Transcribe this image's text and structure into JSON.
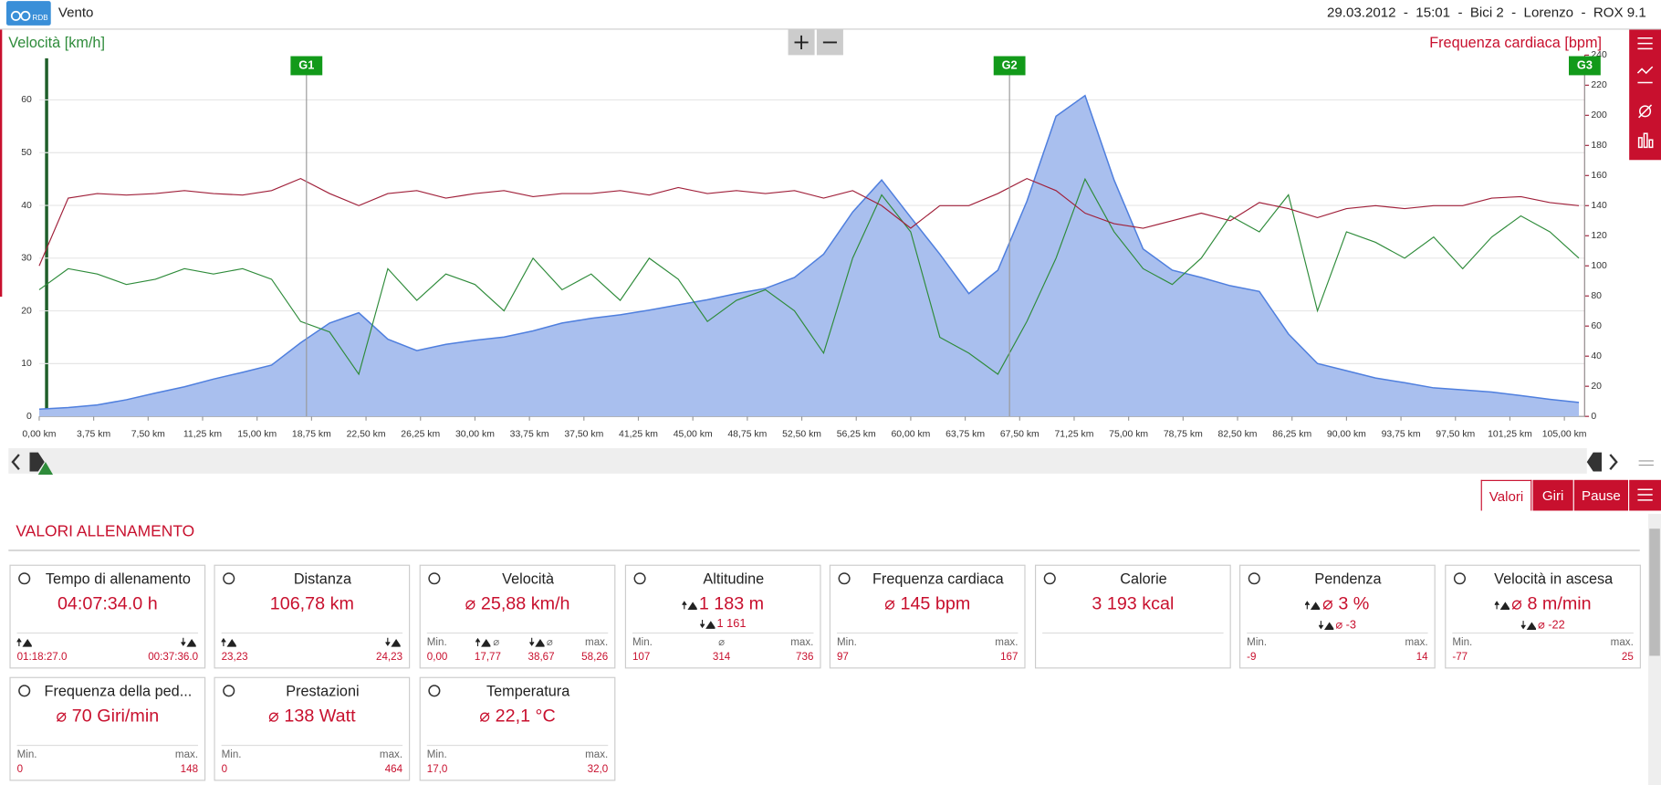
{
  "header": {
    "logo": "RDB",
    "app": "Vento",
    "info": "29.03.2012  -  15:01  -  Bici 2  -  Lorenzo  -  ROX 9.1"
  },
  "chart_data": {
    "type": "line",
    "ylabel": "Velocità [km/h]",
    "y2label": "Frequenza cardiaca [bpm]",
    "x": [
      0,
      2,
      4,
      6,
      8,
      10,
      12,
      14,
      16,
      18,
      20,
      22,
      24,
      26,
      28,
      30,
      32,
      34,
      36,
      38,
      40,
      42,
      44,
      46,
      48,
      50,
      52,
      54,
      56,
      58,
      60,
      62,
      64,
      66,
      68,
      70,
      72,
      74,
      76,
      78,
      80,
      82,
      84,
      86,
      88,
      90,
      92,
      94,
      96,
      98,
      100,
      102,
      104,
      106
    ],
    "series": [
      {
        "style": "area",
        "axis": "y3",
        "color": "#4f7fde",
        "fill": "#a9bfee",
        "values": [
          107,
          110,
          115,
          125,
          138,
          150,
          165,
          178,
          192,
          235,
          273,
          293,
          242,
          220,
          232,
          240,
          246,
          258,
          273,
          282,
          289,
          298,
          308,
          318,
          330,
          340,
          361,
          406,
          487,
          549,
          477,
          406,
          330,
          375,
          508,
          672,
          712,
          549,
          416,
          375,
          361,
          345,
          334,
          252,
          195,
          181,
          167,
          158,
          148,
          144,
          140,
          133,
          126,
          120
        ]
      },
      {
        "name": "Velocità [km/h]",
        "axis": "y",
        "color": "#2e8b3a",
        "values": [
          24,
          28,
          27,
          25,
          26,
          28,
          27,
          28,
          26,
          18,
          16,
          8,
          28,
          22,
          27,
          25,
          20,
          30,
          24,
          27,
          22,
          30,
          26,
          18,
          22,
          24,
          20,
          12,
          30,
          42,
          35,
          15,
          12,
          8,
          18,
          30,
          45,
          35,
          28,
          25,
          30,
          38,
          35,
          42,
          20,
          35,
          33,
          30,
          34,
          28,
          34,
          38,
          35,
          30
        ]
      },
      {
        "name": "Frequenza cardiaca [bpm]",
        "axis": "y2",
        "color": "#a0203a",
        "values": [
          100,
          145,
          148,
          147,
          148,
          150,
          148,
          147,
          150,
          158,
          148,
          140,
          148,
          150,
          145,
          148,
          150,
          146,
          148,
          148,
          150,
          147,
          152,
          148,
          150,
          148,
          150,
          145,
          150,
          140,
          125,
          140,
          140,
          148,
          158,
          150,
          135,
          128,
          125,
          130,
          135,
          130,
          142,
          138,
          132,
          138,
          140,
          138,
          140,
          140,
          145,
          146,
          142,
          140
        ]
      }
    ],
    "xlim": [
      0,
      106.4
    ],
    "xticks": [
      {
        "value": 0,
        "label": "0,00 km"
      },
      {
        "value": 3.75,
        "label": "3,75 km"
      },
      {
        "value": 7.5,
        "label": "7,50 km"
      },
      {
        "value": 11.25,
        "label": "11,25 km"
      },
      {
        "value": 15,
        "label": "15,00 km"
      },
      {
        "value": 18.75,
        "label": "18,75 km"
      },
      {
        "value": 22.5,
        "label": "22,50 km"
      },
      {
        "value": 26.25,
        "label": "26,25 km"
      },
      {
        "value": 30,
        "label": "30,00 km"
      },
      {
        "value": 33.75,
        "label": "33,75 km"
      },
      {
        "value": 37.5,
        "label": "37,50 km"
      },
      {
        "value": 41.25,
        "label": "41,25 km"
      },
      {
        "value": 45,
        "label": "45,00 km"
      },
      {
        "value": 48.75,
        "label": "48,75 km"
      },
      {
        "value": 52.5,
        "label": "52,50 km"
      },
      {
        "value": 56.25,
        "label": "56,25 km"
      },
      {
        "value": 60,
        "label": "60,00 km"
      },
      {
        "value": 63.75,
        "label": "63,75 km"
      },
      {
        "value": 67.5,
        "label": "67,50 km"
      },
      {
        "value": 71.25,
        "label": "71,25 km"
      },
      {
        "value": 75,
        "label": "75,00 km"
      },
      {
        "value": 78.75,
        "label": "78,75 km"
      },
      {
        "value": 82.5,
        "label": "82,50 km"
      },
      {
        "value": 86.25,
        "label": "86,25 km"
      },
      {
        "value": 90,
        "label": "90,00 km"
      },
      {
        "value": 93.75,
        "label": "93,75 km"
      },
      {
        "value": 97.5,
        "label": "97,50 km"
      },
      {
        "value": 101.25,
        "label": "101,25 km"
      },
      {
        "value": 105,
        "label": "105,00 km"
      }
    ],
    "ylim": [
      0,
      68.5
    ],
    "yticks": [
      0,
      10,
      20,
      30,
      40,
      50,
      60
    ],
    "y2lim": [
      0,
      240
    ],
    "y2ticks": [
      0,
      20,
      40,
      60,
      80,
      100,
      120,
      140,
      160,
      180,
      200,
      220,
      240
    ],
    "y3lim": [
      93,
      790
    ],
    "grid": true,
    "markers": [
      {
        "label": "G1",
        "x": 18.4
      },
      {
        "label": "G2",
        "x": 66.8
      },
      {
        "label": "G3",
        "x": 106.4
      }
    ]
  },
  "tabs": [
    "Valori",
    "Giri",
    "Pause"
  ],
  "section_title": "VALORI ALLENAMENTO",
  "cards": [
    {
      "title": "Tempo di allenamento",
      "main": "04:07:34.0 h",
      "stats": [
        {
          "icon": "up",
          "value": "01:18:27.0"
        },
        {
          "icon": "down",
          "value": "00:37:36.0"
        }
      ]
    },
    {
      "title": "Distanza",
      "main": "106,78 km",
      "stats": [
        {
          "icon": "up",
          "value": "23,23"
        },
        {
          "icon": "down",
          "value": "24,23"
        }
      ]
    },
    {
      "title": "Velocità",
      "main": "⌀ 25,88 km/h",
      "stats": [
        {
          "label": "Min.",
          "value": "0,00"
        },
        {
          "icon": "up",
          "label": "⌀",
          "value": "17,77"
        },
        {
          "icon": "down",
          "label": "⌀",
          "value": "38,67"
        },
        {
          "label": "max.",
          "value": "58,26"
        }
      ]
    },
    {
      "title": "Altitudine",
      "main": "1 183 m",
      "main_icon": "up",
      "sub": "1 161",
      "sub_icon": "down",
      "stats": [
        {
          "label": "Min.",
          "value": "107"
        },
        {
          "label": "⌀",
          "value": "314"
        },
        {
          "label": "max.",
          "value": "736"
        }
      ]
    },
    {
      "title": "Frequenza cardiaca",
      "main": "⌀ 145 bpm",
      "stats": [
        {
          "label": "Min.",
          "value": "97"
        },
        {
          "label": "max.",
          "value": "167"
        }
      ]
    },
    {
      "title": "Calorie",
      "main": "3 193 kcal",
      "stats": []
    },
    {
      "title": "Pendenza",
      "main": "⌀ 3 %",
      "main_icon": "up",
      "sub": "⌀ -3",
      "sub_icon": "down",
      "stats": [
        {
          "label": "Min.",
          "value": "-9"
        },
        {
          "label": "max.",
          "value": "14"
        }
      ]
    },
    {
      "title": "Velocità in ascesa",
      "main": "⌀ 8 m/min",
      "main_icon": "up",
      "sub": "⌀ -22",
      "sub_icon": "down",
      "stats": [
        {
          "label": "Min.",
          "value": "-77"
        },
        {
          "label": "max.",
          "value": "25"
        }
      ]
    },
    {
      "title": "Frequenza della ped...",
      "main": "⌀ 70 Giri/min",
      "stats": [
        {
          "label": "Min.",
          "value": "0"
        },
        {
          "label": "max.",
          "value": "148"
        }
      ]
    },
    {
      "title": "Prestazioni",
      "main": "⌀ 138 Watt",
      "stats": [
        {
          "label": "Min.",
          "value": "0"
        },
        {
          "label": "max.",
          "value": "464"
        }
      ]
    },
    {
      "title": "Temperatura",
      "main": "⌀ 22,1 °C",
      "stats": [
        {
          "label": "Min.",
          "value": "17,0"
        },
        {
          "label": "max.",
          "value": "32,0"
        }
      ]
    }
  ]
}
